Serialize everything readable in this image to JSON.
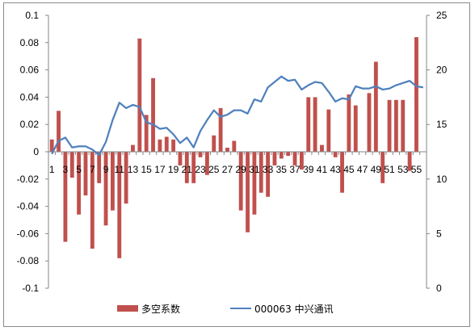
{
  "chart_data": {
    "type": "bar-line-combo",
    "left_axis": {
      "ylim": [
        -0.1,
        0.1
      ],
      "ticks": [
        0.1,
        0.08,
        0.06,
        0.04,
        0.02,
        0,
        -0.02,
        -0.04,
        -0.06,
        -0.08,
        -0.1
      ],
      "tick_labels": [
        "0.1",
        "0.08",
        "0.06",
        "0.04",
        "0.02",
        "0",
        "-0.02",
        "-0.04",
        "-0.06",
        "-0.08",
        "-0.1"
      ]
    },
    "right_axis": {
      "ylim": [
        0,
        25
      ],
      "ticks": [
        25,
        20,
        15,
        10,
        5,
        0
      ],
      "tick_labels": [
        "25",
        "20",
        "15",
        "10",
        "5",
        "0"
      ]
    },
    "x_tick_labels": [
      "1",
      "3",
      "5",
      "7",
      "9",
      "11",
      "13",
      "15",
      "17",
      "19",
      "21",
      "23",
      "25",
      "27",
      "29",
      "31",
      "33",
      "35",
      "37",
      "39",
      "41",
      "43",
      "45",
      "47",
      "49",
      "51",
      "53",
      "55"
    ],
    "x": [
      1,
      2,
      3,
      4,
      5,
      6,
      7,
      8,
      9,
      10,
      11,
      12,
      13,
      14,
      15,
      16,
      17,
      18,
      19,
      20,
      21,
      22,
      23,
      24,
      25,
      26,
      27,
      28,
      29,
      30,
      31,
      32,
      33,
      35,
      35,
      36,
      37,
      38,
      39,
      40,
      41,
      42,
      43,
      44,
      45,
      46,
      47,
      48,
      49,
      50,
      51,
      52,
      53,
      54,
      55,
      56
    ],
    "series": [
      {
        "name": "多空系数",
        "kind": "bar",
        "axis": "left",
        "color": "#c0504d",
        "values": [
          0.009,
          0.03,
          -0.066,
          -0.019,
          -0.046,
          -0.032,
          -0.071,
          -0.023,
          -0.054,
          -0.043,
          -0.078,
          -0.038,
          0.005,
          0.083,
          0.027,
          0.054,
          0.009,
          0.011,
          0.009,
          -0.01,
          -0.023,
          -0.023,
          -0.004,
          -0.017,
          0.012,
          0.032,
          0.003,
          0.008,
          -0.043,
          -0.059,
          -0.046,
          -0.03,
          -0.033,
          -0.01,
          -0.005,
          -0.003,
          -0.01,
          -0.013,
          0.04,
          0.04,
          0.005,
          0.031,
          -0.004,
          -0.03,
          0.042,
          0.034,
          0.0,
          0.043,
          0.066,
          -0.023,
          0.038,
          0.038,
          0.038,
          -0.014,
          0.084,
          0.0
        ]
      },
      {
        "name": "000063 中兴通讯",
        "kind": "line",
        "axis": "right",
        "color": "#4f81bd",
        "values": [
          12.3,
          13.5,
          13.8,
          12.9,
          13.0,
          13.0,
          12.7,
          12.2,
          13.4,
          15.4,
          17.0,
          16.5,
          16.8,
          16.6,
          15.2,
          15.0,
          14.6,
          14.7,
          14.1,
          13.3,
          13.8,
          12.9,
          14.4,
          15.4,
          16.3,
          15.7,
          15.9,
          16.3,
          16.3,
          16.0,
          17.3,
          17.1,
          18.4,
          18.9,
          19.4,
          19.0,
          19.1,
          18.2,
          18.6,
          18.9,
          18.8,
          18.0,
          17.1,
          17.4,
          17.3,
          18.5,
          18.3,
          18.3,
          18.5,
          18.2,
          18.3,
          18.6,
          18.8,
          19.0,
          18.5,
          18.4
        ]
      }
    ],
    "legend_position": "bottom",
    "grid": false
  },
  "legend": {
    "bar_label": "多空系数",
    "line_label": "000063 中兴通讯",
    "bar_color": "#c0504d",
    "line_color": "#4f81bd"
  }
}
